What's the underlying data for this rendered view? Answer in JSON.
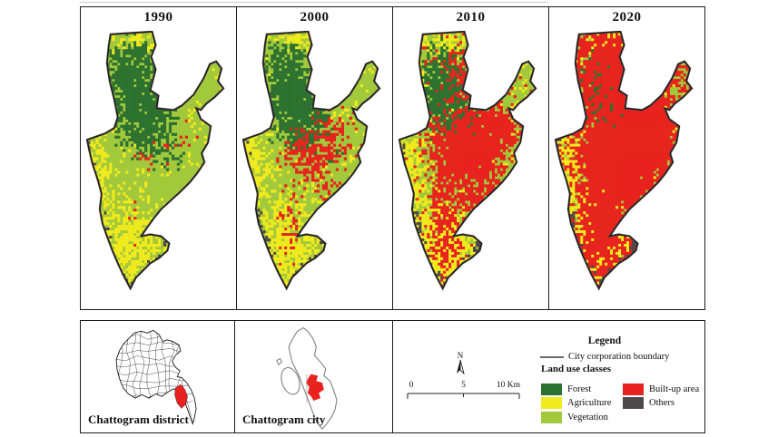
{
  "figure": {
    "panels": [
      {
        "year": "1990"
      },
      {
        "year": "2000"
      },
      {
        "year": "2010"
      },
      {
        "year": "2020"
      }
    ]
  },
  "insets": {
    "district_label": "Chattogram district",
    "city_label": "Chattogram city"
  },
  "legend": {
    "title": "Legend",
    "boundary_label": "City corporation boundary",
    "classes_heading": "Land use classes",
    "classes": [
      {
        "label": "Forest",
        "color": "#2c7130"
      },
      {
        "label": "Agriculture",
        "color": "#f0ea1e"
      },
      {
        "label": "Vegetation",
        "color": "#a2c83b"
      },
      {
        "label": "Built-up area",
        "color": "#e8221e"
      },
      {
        "label": "Others",
        "color": "#4e494a"
      }
    ]
  },
  "scale_bar": {
    "tick_labels": [
      "0",
      "5",
      "10 Km"
    ]
  },
  "north_arrow": {
    "label": "N"
  }
}
